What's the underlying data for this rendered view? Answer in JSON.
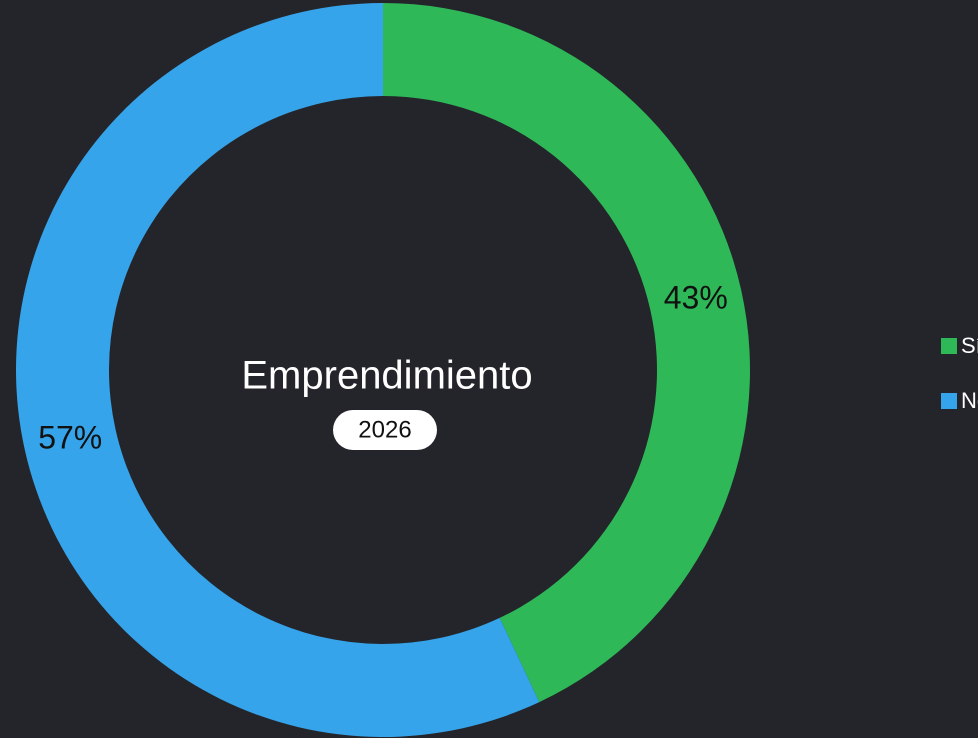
{
  "chart_data": {
    "type": "pie",
    "donut": true,
    "center_title": "Emprendimiento",
    "center_subtitle": "2026",
    "categories": [
      "Sí",
      "No"
    ],
    "values": [
      43,
      57
    ],
    "value_labels": [
      "43%",
      "57%"
    ],
    "colors": [
      "#2eb858",
      "#36a4ea"
    ],
    "legend": "right"
  }
}
